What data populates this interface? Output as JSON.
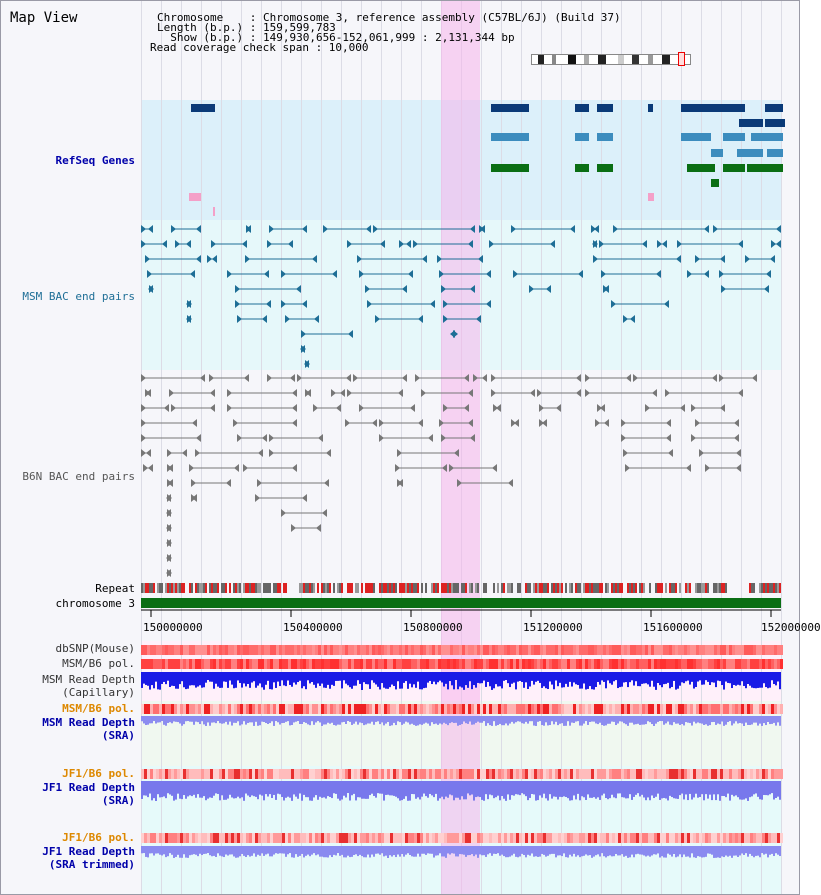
{
  "title": "Map View",
  "info": {
    "chromosome_label": "Chromosome    : Chromosome 3, reference assembly (C57BL/6J) (Build 37)",
    "length_label": "Length (b.p.) : 159,599,783",
    "show_label": "  Show (b.p.) : 149,930,656-152,061,999 : 2,131,344 bp",
    "coverage_label": "Read coverage check span : 10,000"
  },
  "tracks": {
    "refseq": "RefSeq Genes",
    "msm_bac": "MSM BAC end pairs",
    "b6n_bac": "B6N BAC end pairs",
    "repeat": "Repeat",
    "chromosome": "chromosome 3",
    "dbsnp": "dbSNP(Mouse)",
    "msm_b6_pol_1": "MSM/B6 pol.",
    "msm_depth_cap_1": "MSM Read Depth",
    "msm_depth_cap_2": "(Capillary)",
    "msm_b6_pol_2": "MSM/B6 pol.",
    "msm_depth_sra_1": "MSM Read Depth",
    "msm_depth_sra_2": "(SRA)",
    "jf1_pol_1": "JF1/B6 pol.",
    "jf1_depth_sra_1": "JF1 Read Depth",
    "jf1_depth_sra_2": "(SRA)",
    "jf1_pol_2": "JF1/B6 pol.",
    "jf1_depth_trim_1": "JF1 Read Depth",
    "jf1_depth_trim_2": "(SRA trimmed)"
  },
  "axis": {
    "ticks": [
      "150000000",
      "150400000",
      "150800000",
      "151200000",
      "151600000",
      "152000000"
    ]
  },
  "colors": {
    "refseq_bg": "#dcf0fa",
    "msm_bg": "#e6f8fa",
    "b6n_bg": "#f6f6fa",
    "highlight": "#f5b4eb",
    "gene_dark": "#0a3a78",
    "gene_mid": "#3c8cbe",
    "gene_green": "#0a6e14",
    "msm_pair": "#1e6e96",
    "b6n_pair": "#777777",
    "label_blue": "#0000aa",
    "label_orange": "#dd8800"
  }
}
